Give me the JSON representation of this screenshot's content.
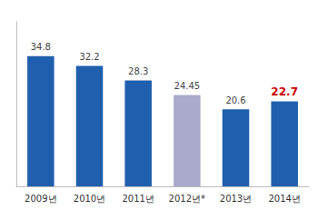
{
  "chart_data": {
    "type": "bar",
    "categories": [
      "2009년",
      "2010년",
      "2011년",
      "2012년*",
      "2013년",
      "2014년"
    ],
    "values": [
      34.8,
      32.2,
      28.3,
      24.45,
      20.6,
      22.7
    ],
    "colors": [
      "#1F5FAD",
      "#1F5FAD",
      "#1F5FAD",
      "#AAAACC",
      "#1F5FAD",
      "#1F5FAD"
    ],
    "ylim": [
      0,
      44
    ],
    "data_labels": true,
    "tick_labels": "x",
    "grid": false
  }
}
